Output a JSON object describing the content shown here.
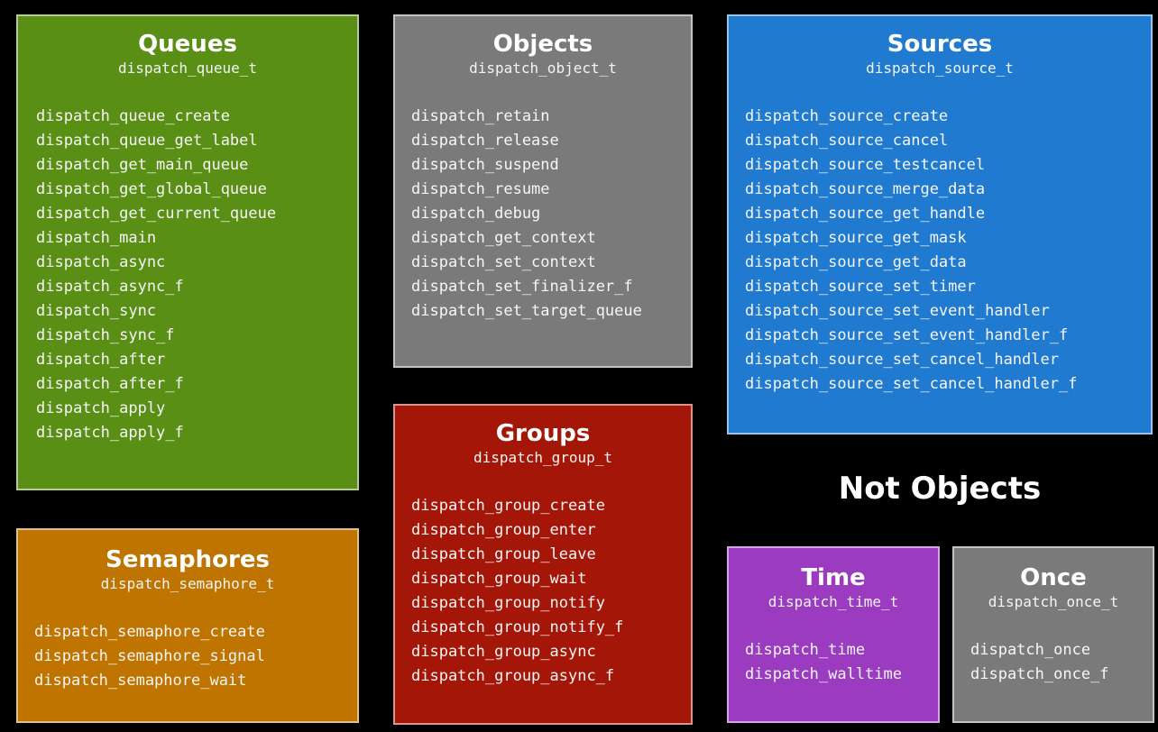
{
  "queues": {
    "title": "Queues",
    "type": "dispatch_queue_t",
    "items": [
      "dispatch_queue_create",
      "dispatch_queue_get_label",
      "dispatch_get_main_queue",
      "dispatch_get_global_queue",
      "dispatch_get_current_queue",
      "dispatch_main",
      "dispatch_async",
      "dispatch_async_f",
      "dispatch_sync",
      "dispatch_sync_f",
      "dispatch_after",
      "dispatch_after_f",
      "dispatch_apply",
      "dispatch_apply_f"
    ]
  },
  "objects": {
    "title": "Objects",
    "type": "dispatch_object_t",
    "items": [
      "dispatch_retain",
      "dispatch_release",
      "dispatch_suspend",
      "dispatch_resume",
      "dispatch_debug",
      "dispatch_get_context",
      "dispatch_set_context",
      "dispatch_set_finalizer_f",
      "dispatch_set_target_queue"
    ]
  },
  "sources": {
    "title": "Sources",
    "type": "dispatch_source_t",
    "items": [
      "dispatch_source_create",
      "dispatch_source_cancel",
      "dispatch_source_testcancel",
      "dispatch_source_merge_data",
      "dispatch_source_get_handle",
      "dispatch_source_get_mask",
      "dispatch_source_get_data",
      "dispatch_source_set_timer",
      "dispatch_source_set_event_handler",
      "dispatch_source_set_event_handler_f",
      "dispatch_source_set_cancel_handler",
      "dispatch_source_set_cancel_handler_f"
    ]
  },
  "groups": {
    "title": "Groups",
    "type": "dispatch_group_t",
    "items": [
      "dispatch_group_create",
      "dispatch_group_enter",
      "dispatch_group_leave",
      "dispatch_group_wait",
      "dispatch_group_notify",
      "dispatch_group_notify_f",
      "dispatch_group_async",
      "dispatch_group_async_f"
    ]
  },
  "semaphores": {
    "title": "Semaphores",
    "type": "dispatch_semaphore_t",
    "items": [
      "dispatch_semaphore_create",
      "dispatch_semaphore_signal",
      "dispatch_semaphore_wait"
    ]
  },
  "not_objects": {
    "heading": "Not Objects"
  },
  "time": {
    "title": "Time",
    "type": "dispatch_time_t",
    "items": [
      "dispatch_time",
      "dispatch_walltime"
    ]
  },
  "once": {
    "title": "Once",
    "type": "dispatch_once_t",
    "items": [
      "dispatch_once",
      "dispatch_once_f"
    ]
  },
  "colors": {
    "queues": "#5a8f16",
    "objects": "#7a7a7a",
    "sources": "#1f7ad0",
    "groups": "#a41708",
    "semaphores": "#bf7400",
    "time": "#9b3bc0",
    "once": "#7a7a7a"
  }
}
